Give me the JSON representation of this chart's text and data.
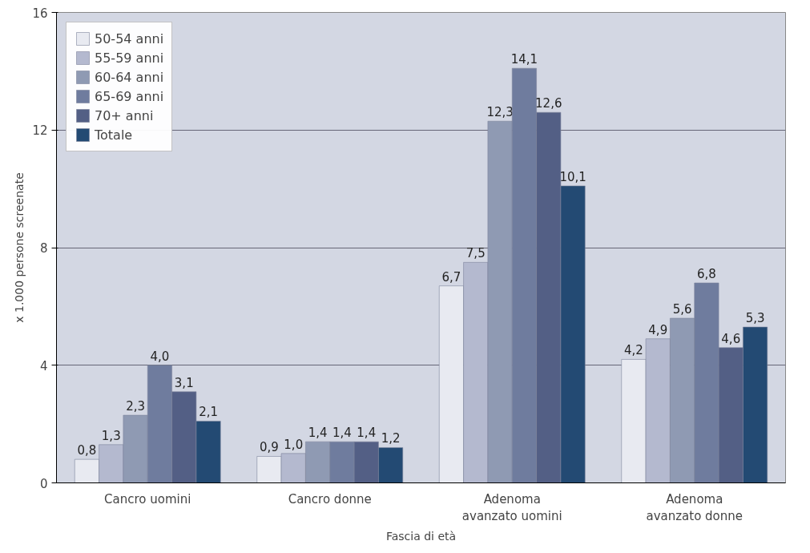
{
  "chart_data": {
    "type": "bar",
    "xlabel": "Fascia di età",
    "ylabel": "x 1.000 persone screenate",
    "categories": [
      "Cancro uomini",
      "Cancro donne",
      "Adenoma avanzato uomini",
      "Adenoma avanzato donne"
    ],
    "series": [
      {
        "name": "50-54 anni",
        "color": "#e8eaf1",
        "values": [
          0.8,
          0.9,
          6.7,
          4.2
        ],
        "value_labels": [
          "0,8",
          "0,9",
          "6,7",
          "4,2"
        ]
      },
      {
        "name": "55-59 anni",
        "color": "#b4b9cf",
        "values": [
          1.3,
          1.0,
          7.5,
          4.9
        ],
        "value_labels": [
          "1,3",
          "1,0",
          "7,5",
          "4,9"
        ]
      },
      {
        "name": "60-64 anni",
        "color": "#8f9ab3",
        "values": [
          2.3,
          1.4,
          12.3,
          5.6
        ],
        "value_labels": [
          "2,3",
          "1,4",
          "12,3",
          "5,6"
        ]
      },
      {
        "name": "65-69 anni",
        "color": "#6f7c9e",
        "values": [
          4.0,
          1.4,
          14.1,
          6.8
        ],
        "value_labels": [
          "4,0",
          "1,4",
          "14,1",
          "6,8"
        ]
      },
      {
        "name": "70+ anni",
        "color": "#535f85",
        "values": [
          3.1,
          1.4,
          12.6,
          4.6
        ],
        "value_labels": [
          "3,1",
          "1,4",
          "12,6",
          "4,6"
        ]
      },
      {
        "name": "Totale",
        "color": "#234a73",
        "values": [
          2.1,
          1.2,
          10.1,
          5.3
        ],
        "value_labels": [
          "2,1",
          "1,2",
          "10,1",
          "5,3"
        ]
      }
    ],
    "ylim": [
      0,
      16
    ],
    "yticks": [
      0,
      4,
      8,
      12,
      16
    ],
    "grid": "y",
    "legend": "top left"
  }
}
